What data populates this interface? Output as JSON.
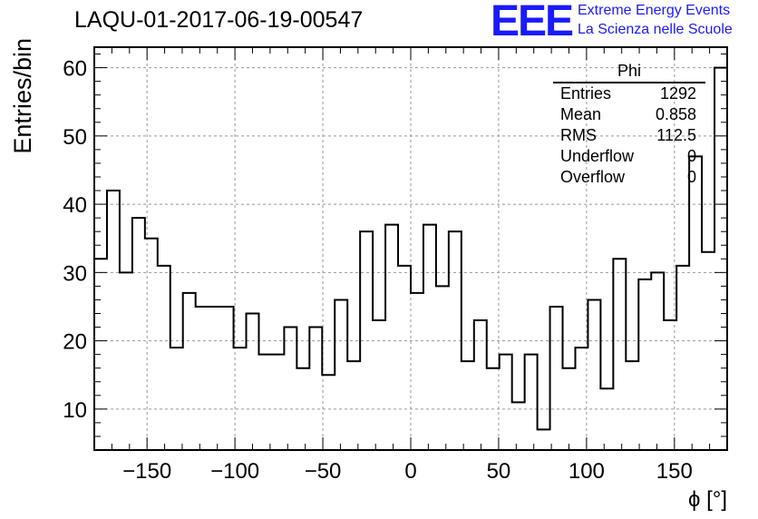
{
  "title": "LAQU-01-2017-06-19-00547",
  "logo": {
    "mark": "EEE",
    "line1": "Extreme Energy Events",
    "line2": "La Scienza nelle Scuole",
    "color": "#1a1aff"
  },
  "stats": {
    "name": "Phi",
    "rows": [
      {
        "label": "Entries",
        "value": "1292"
      },
      {
        "label": "Mean",
        "value": "0.858"
      },
      {
        "label": "RMS",
        "value": "112.5"
      },
      {
        "label": "Underflow",
        "value": "0"
      },
      {
        "label": "Overflow",
        "value": "0"
      }
    ]
  },
  "chart_data": {
    "type": "histogram",
    "title": "LAQU-01-2017-06-19-00547",
    "xlabel": "ϕ [°]",
    "ylabel": "Entries/bin",
    "xlim": [
      -180,
      180
    ],
    "ylim": [
      4,
      63
    ],
    "bin_width": 7.2,
    "bin_edges_start": -180,
    "values": [
      32,
      42,
      30,
      38,
      35,
      31,
      19,
      27,
      25,
      25,
      25,
      19,
      24,
      18,
      18,
      22,
      16,
      22,
      15,
      26,
      17,
      36,
      23,
      37,
      31,
      27,
      37,
      28,
      36,
      17,
      23,
      16,
      18,
      11,
      18,
      7,
      25,
      16,
      19,
      26,
      13,
      32,
      17,
      29,
      30,
      23,
      31,
      47,
      33,
      60
    ],
    "xticks": [
      -150,
      -100,
      -50,
      0,
      50,
      100,
      150
    ],
    "xtick_labels": [
      "−150",
      "−100",
      "−50",
      "0",
      "50",
      "100",
      "150"
    ],
    "yticks": [
      10,
      20,
      30,
      40,
      50,
      60
    ],
    "ytick_labels": [
      "10",
      "20",
      "30",
      "40",
      "50",
      "60"
    ],
    "grid": true
  }
}
